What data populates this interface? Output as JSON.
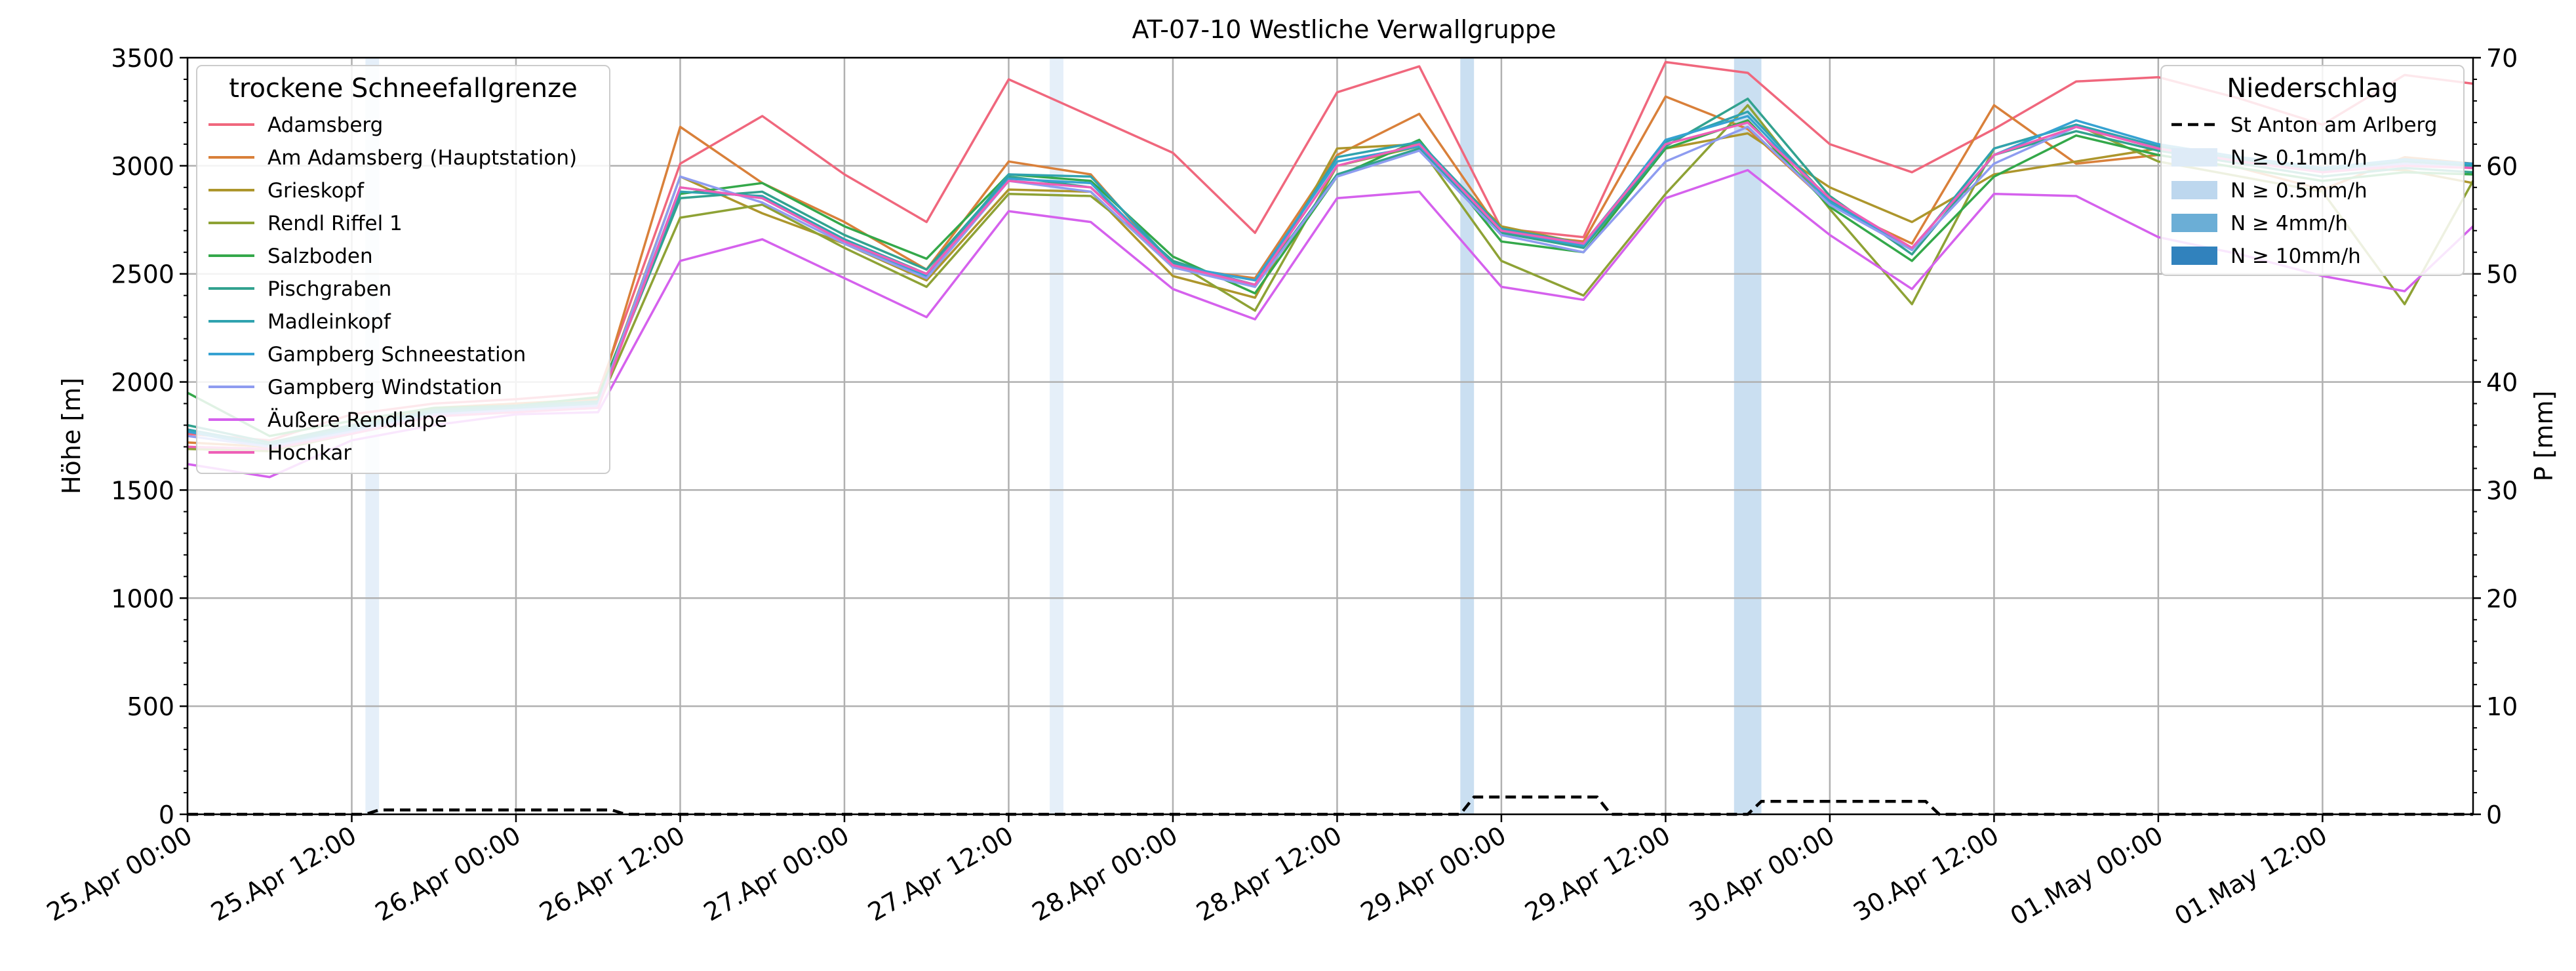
{
  "chart_data": {
    "type": "line",
    "title": "AT-07-10 Westliche Verwallgruppe",
    "ylabel_left": "Höhe [m]",
    "ylabel_right": "P [mm]",
    "ylim_left": [
      0,
      3500
    ],
    "ylim_right": [
      0,
      70
    ],
    "yticks_left": [
      0,
      500,
      1000,
      1500,
      2000,
      2500,
      3000,
      3500
    ],
    "yticks_right": [
      0,
      10,
      20,
      30,
      40,
      50,
      60,
      70
    ],
    "x_range_hours": [
      0,
      167
    ],
    "x_ticks": [
      {
        "h": 0,
        "label": "25.Apr 00:00"
      },
      {
        "h": 12,
        "label": "25.Apr 12:00"
      },
      {
        "h": 24,
        "label": "26.Apr 00:00"
      },
      {
        "h": 36,
        "label": "26.Apr 12:00"
      },
      {
        "h": 48,
        "label": "27.Apr 00:00"
      },
      {
        "h": 60,
        "label": "27.Apr 12:00"
      },
      {
        "h": 72,
        "label": "28.Apr 00:00"
      },
      {
        "h": 84,
        "label": "28.Apr 12:00"
      },
      {
        "h": 96,
        "label": "29.Apr 00:00"
      },
      {
        "h": 108,
        "label": "29.Apr 12:00"
      },
      {
        "h": 120,
        "label": "30.Apr 00:00"
      },
      {
        "h": 132,
        "label": "30.Apr 12:00"
      },
      {
        "h": 144,
        "label": "01.May 00:00"
      },
      {
        "h": 156,
        "label": "01.May 12:00"
      }
    ],
    "legend_snow": {
      "title": "trockene Schneefallgrenze",
      "placement": "top-left"
    },
    "legend_precip": {
      "title": "Niederschlag",
      "placement": "top-right",
      "entries": [
        {
          "label": "St Anton am Arlberg",
          "color": "#000000",
          "style": "dashed"
        },
        {
          "label": "N ≥ 0.1mm/h",
          "color": "#deebf7"
        },
        {
          "label": "N ≥ 0.5mm/h",
          "color": "#bdd7ee"
        },
        {
          "label": "N ≥ 4mm/h",
          "color": "#6baed6"
        },
        {
          "label": "N ≥ 10mm/h",
          "color": "#3182bd"
        }
      ]
    },
    "precip_bands": [
      {
        "start": 13,
        "end": 14,
        "level": 0
      },
      {
        "start": 63,
        "end": 64,
        "level": 0
      },
      {
        "start": 93,
        "end": 94,
        "level": 1
      },
      {
        "start": 113,
        "end": 115,
        "level": 1
      }
    ],
    "precip_cumulative": {
      "name": "St Anton am Arlberg",
      "x": [
        0,
        13,
        14,
        31,
        32,
        93,
        94,
        103,
        104,
        114,
        115,
        127,
        128,
        167
      ],
      "y": [
        0,
        0,
        0.4,
        0.4,
        0,
        0,
        1.6,
        1.6,
        0,
        0,
        1.2,
        1.2,
        0,
        0
      ]
    },
    "snowline_x": [
      0,
      6,
      12,
      18,
      24,
      30,
      36,
      42,
      48,
      54,
      60,
      66,
      72,
      78,
      84,
      90,
      96,
      102,
      108,
      114,
      120,
      126,
      132,
      138,
      144,
      150,
      156,
      162,
      167
    ],
    "series": [
      {
        "name": "Adamsberg",
        "color": "#f0677d",
        "values": [
          1760,
          1730,
          1850,
          1900,
          1920,
          1950,
          3010,
          3230,
          2960,
          2740,
          3400,
          3230,
          3060,
          2690,
          3340,
          3460,
          2710,
          2670,
          3480,
          3430,
          3100,
          2970,
          3170,
          3390,
          3410,
          3310,
          3190,
          3420,
          3380
        ]
      },
      {
        "name": "Am Adamsberg (Hauptstation)",
        "color": "#d9803a",
        "values": [
          1720,
          1700,
          1800,
          1880,
          1900,
          1920,
          3180,
          2920,
          2740,
          2520,
          3020,
          2960,
          2530,
          2480,
          3050,
          3240,
          2690,
          2650,
          3320,
          3170,
          2820,
          2640,
          3280,
          3010,
          3050,
          2990,
          2890,
          3040,
          3010
        ]
      },
      {
        "name": "Grieskopf",
        "color": "#ad962c",
        "values": [
          1700,
          1690,
          1780,
          1860,
          1880,
          1900,
          2950,
          2780,
          2640,
          2470,
          2890,
          2880,
          2490,
          2390,
          3080,
          3100,
          2720,
          2640,
          3080,
          3150,
          2900,
          2740,
          2960,
          3020,
          3080,
          3020,
          2990,
          2980,
          2920
        ]
      },
      {
        "name": "Rendl Riffel 1",
        "color": "#8ea235",
        "values": [
          1690,
          1680,
          1760,
          1840,
          1870,
          1890,
          2760,
          2820,
          2620,
          2440,
          2870,
          2860,
          2560,
          2330,
          3000,
          3090,
          2560,
          2400,
          2870,
          3280,
          2800,
          2360,
          3080,
          3190,
          3020,
          2950,
          2880,
          2360,
          2930
        ]
      },
      {
        "name": "Salzboden",
        "color": "#34a84a",
        "values": [
          1950,
          1750,
          1820,
          1880,
          1890,
          1930,
          2870,
          2920,
          2720,
          2570,
          2960,
          2930,
          2580,
          2410,
          2950,
          3120,
          2650,
          2600,
          3080,
          3210,
          2810,
          2560,
          2950,
          3140,
          3050,
          2990,
          2930,
          2970,
          2960
        ]
      },
      {
        "name": "Pischgraben",
        "color": "#32a28f",
        "values": [
          1800,
          1720,
          1800,
          1870,
          1890,
          1910,
          2850,
          2880,
          2680,
          2520,
          2950,
          2900,
          2560,
          2440,
          2960,
          3080,
          2690,
          2620,
          3090,
          3310,
          2860,
          2590,
          3050,
          3160,
          3070,
          3010,
          2950,
          2990,
          2970
        ]
      },
      {
        "name": "Madleinkopf",
        "color": "#30a3af",
        "values": [
          1780,
          1710,
          1790,
          1860,
          1880,
          1900,
          2880,
          2860,
          2660,
          2500,
          2960,
          2950,
          2550,
          2450,
          3040,
          3110,
          2710,
          2640,
          3110,
          3250,
          2840,
          2610,
          3080,
          3190,
          3090,
          3030,
          2980,
          3020,
          3000
        ]
      },
      {
        "name": "Gampberg Schneestation",
        "color": "#36a2d2",
        "values": [
          1770,
          1700,
          1780,
          1850,
          1870,
          1890,
          2900,
          2850,
          2650,
          2490,
          2940,
          2920,
          2540,
          2470,
          3020,
          3090,
          2700,
          2630,
          3120,
          3230,
          2830,
          2620,
          3050,
          3210,
          3100,
          3040,
          2990,
          3030,
          3010
        ]
      },
      {
        "name": "Gampberg Windstation",
        "color": "#8e9cf0",
        "values": [
          1750,
          1700,
          1770,
          1850,
          1870,
          1890,
          2950,
          2830,
          2640,
          2480,
          2930,
          2880,
          2530,
          2440,
          2950,
          3070,
          2680,
          2600,
          3020,
          3180,
          2820,
          2610,
          3010,
          3180,
          3080,
          3020,
          2970,
          3010,
          2990
        ]
      },
      {
        "name": "Äußere Rendlalpe",
        "color": "#d561ed",
        "values": [
          1620,
          1560,
          1730,
          1800,
          1850,
          1860,
          2560,
          2660,
          2480,
          2300,
          2790,
          2740,
          2430,
          2290,
          2850,
          2880,
          2440,
          2380,
          2850,
          2980,
          2680,
          2430,
          2870,
          2860,
          2670,
          2590,
          2490,
          2420,
          2720
        ]
      },
      {
        "name": "Hochkar",
        "color": "#ee5fb7",
        "values": [
          1700,
          1690,
          1760,
          1840,
          1860,
          1880,
          2900,
          2850,
          2650,
          2500,
          2930,
          2900,
          2540,
          2450,
          3000,
          3100,
          2700,
          2640,
          3100,
          3200,
          2850,
          2620,
          3050,
          3180,
          3080,
          3020,
          2970,
          3000,
          2990
        ]
      }
    ]
  }
}
